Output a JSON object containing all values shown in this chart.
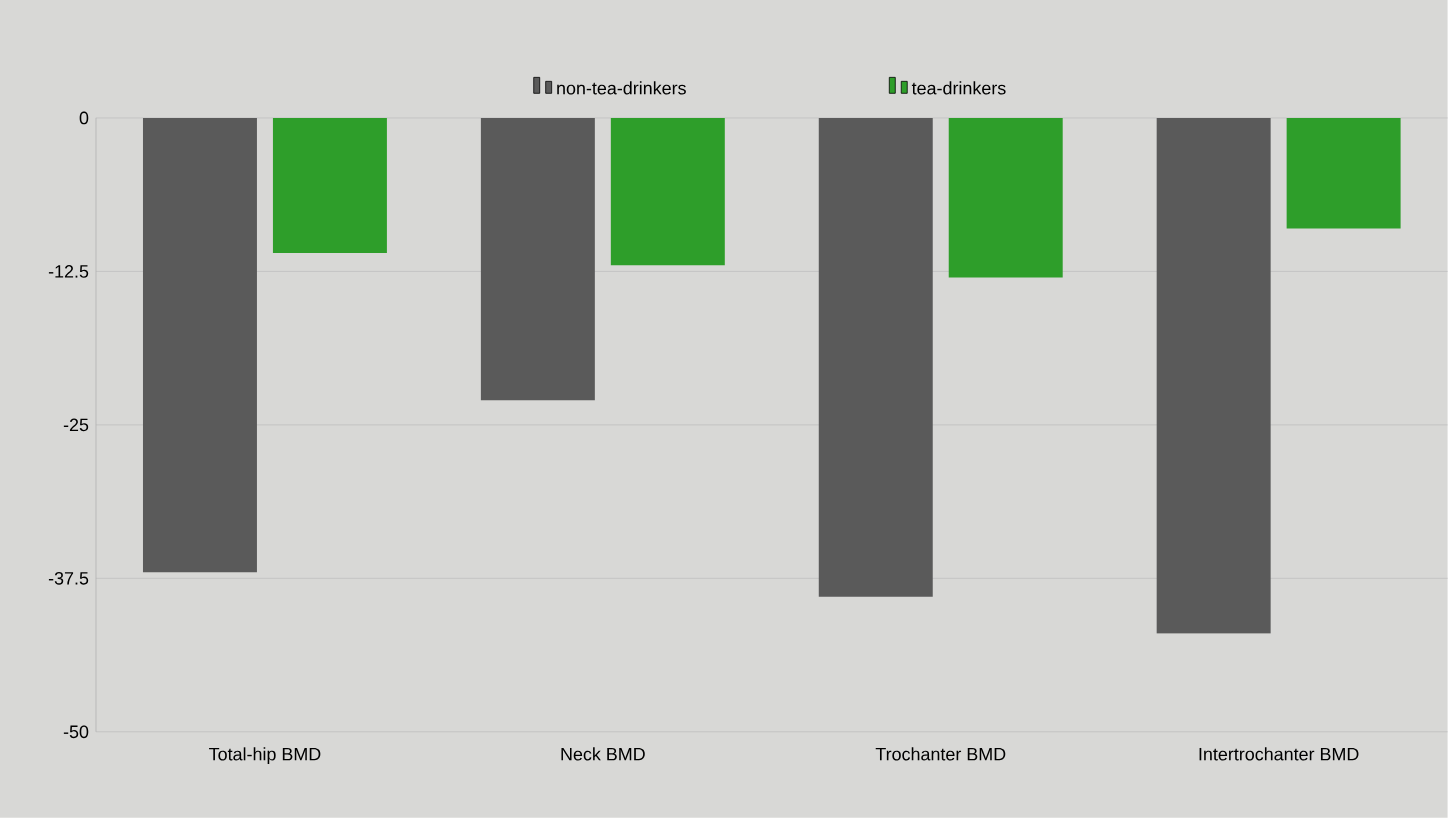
{
  "chart_data": {
    "type": "bar",
    "categories": [
      "Total-hip BMD",
      "Neck BMD",
      "Trochanter BMD",
      "Intertrochanter BMD"
    ],
    "series": [
      {
        "name": "non-tea-drinkers",
        "color": "#5a5a5a",
        "values": [
          -37,
          -23,
          -39,
          -42
        ]
      },
      {
        "name": "tea-drinkers",
        "color": "#2e9e2a",
        "values": [
          -11,
          -12,
          -13,
          -9
        ]
      }
    ],
    "ylim": [
      -50,
      0
    ],
    "yticks": [
      0,
      {
        "value": -12.5,
        "label": "-12.5"
      },
      -25,
      {
        "value": -37.5,
        "label": "-37.5"
      },
      -50
    ],
    "grid": "y",
    "legend": "top"
  }
}
